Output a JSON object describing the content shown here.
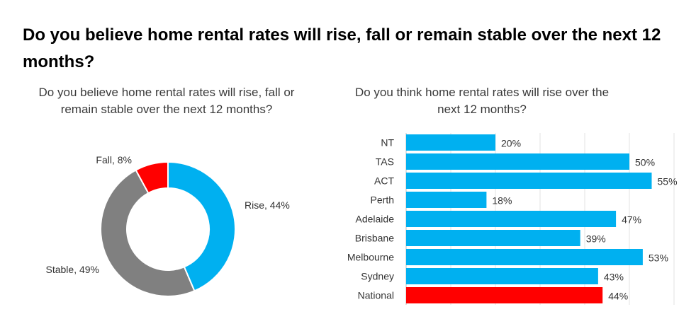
{
  "main_title": "Do you believe home rental rates will rise, fall or remain stable over the next 12 months?",
  "chart_data": [
    {
      "type": "pie",
      "subtype": "donut",
      "title": "Do you believe home rental rates will rise, fall or remain stable over the next 12 months?",
      "slices": [
        {
          "label": "Rise",
          "value": 44,
          "display": "Rise, 44%",
          "color": "#00B0F0"
        },
        {
          "label": "Stable",
          "value": 49,
          "display": "Stable, 49%",
          "color": "#808080"
        },
        {
          "label": "Fall",
          "value": 8,
          "display": "Fall, 8%",
          "color": "#FF0000"
        }
      ]
    },
    {
      "type": "bar",
      "orientation": "horizontal",
      "title": "Do you think home rental rates will rise over the next 12 months?",
      "categories": [
        "NT",
        "TAS",
        "ACT",
        "Perth",
        "Adelaide",
        "Brisbane",
        "Melbourne",
        "Sydney",
        "National"
      ],
      "values": [
        20,
        50,
        55,
        18,
        47,
        39,
        53,
        43,
        44
      ],
      "value_labels": [
        "20%",
        "50%",
        "55%",
        "18%",
        "47%",
        "39%",
        "53%",
        "43%",
        "44%"
      ],
      "colors": [
        "#00B0F0",
        "#00B0F0",
        "#00B0F0",
        "#00B0F0",
        "#00B0F0",
        "#00B0F0",
        "#00B0F0",
        "#00B0F0",
        "#FF0000"
      ],
      "xlim": [
        0,
        60
      ],
      "grid": true
    }
  ]
}
